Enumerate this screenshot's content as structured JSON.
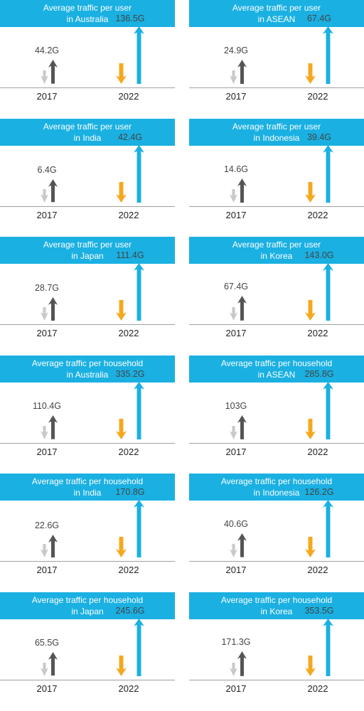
{
  "colors": {
    "banner": "#1ab0e2",
    "arrow_2017_up": "#555555",
    "arrow_2017_down": "#c9c9c9",
    "arrow_2022_up": "#1ab0e2",
    "arrow_2022_down": "#f5a81c"
  },
  "chart_data": [
    {
      "type": "bar",
      "title": "Average traffic per user in Australia",
      "title_lines": [
        "Average traffic per user",
        "in Australia"
      ],
      "categories": [
        "2017",
        "2022"
      ],
      "values": [
        44.2,
        136.5
      ],
      "labels": [
        "44.2G",
        "136.5G"
      ]
    },
    {
      "type": "bar",
      "title": "Average traffic per user in ASEAN",
      "title_lines": [
        "Average traffic per user",
        "in ASEAN"
      ],
      "categories": [
        "2017",
        "2022"
      ],
      "values": [
        24.9,
        67.4
      ],
      "labels": [
        "24.9G",
        "67.4G"
      ]
    },
    {
      "type": "bar",
      "title": "Average traffic per user in India",
      "title_lines": [
        "Average traffic per user",
        "in India"
      ],
      "categories": [
        "2017",
        "2022"
      ],
      "values": [
        6.4,
        42.4
      ],
      "labels": [
        "6.4G",
        "42.4G"
      ]
    },
    {
      "type": "bar",
      "title": "Average traffic per user in Indonesia",
      "title_lines": [
        "Average traffic per user",
        "in Indonesia"
      ],
      "categories": [
        "2017",
        "2022"
      ],
      "values": [
        14.6,
        39.4
      ],
      "labels": [
        "14.6G",
        "39.4G"
      ]
    },
    {
      "type": "bar",
      "title": "Average traffic per user in Japan",
      "title_lines": [
        "Average traffic per user",
        "in Japan"
      ],
      "categories": [
        "2017",
        "2022"
      ],
      "values": [
        28.7,
        111.4
      ],
      "labels": [
        "28.7G",
        "111.4G"
      ]
    },
    {
      "type": "bar",
      "title": "Average traffic per user in Korea",
      "title_lines": [
        "Average traffic per user",
        "in Korea"
      ],
      "categories": [
        "2017",
        "2022"
      ],
      "values": [
        67.4,
        143.0
      ],
      "labels": [
        "67.4G",
        "143.0G"
      ]
    },
    {
      "type": "bar",
      "title": "Average traffic per household in Australia",
      "title_lines": [
        "Average traffic per household",
        "in Australia"
      ],
      "categories": [
        "2017",
        "2022"
      ],
      "values": [
        110.4,
        335.2
      ],
      "labels": [
        "110.4G",
        "335.2G"
      ]
    },
    {
      "type": "bar",
      "title": "Average traffic per household in ASEAN",
      "title_lines": [
        "Average traffic per household",
        "in ASEAN"
      ],
      "categories": [
        "2017",
        "2022"
      ],
      "values": [
        103,
        285.8
      ],
      "labels": [
        "103G",
        "285.8G"
      ]
    },
    {
      "type": "bar",
      "title": "Average traffic per household in India",
      "title_lines": [
        "Average traffic per household",
        "in India"
      ],
      "categories": [
        "2017",
        "2022"
      ],
      "values": [
        22.6,
        170.8
      ],
      "labels": [
        "22.6G",
        "170.8G"
      ]
    },
    {
      "type": "bar",
      "title": "Average traffic per household in Indonesia",
      "title_lines": [
        "Average traffic per household",
        "in Indonesia"
      ],
      "categories": [
        "2017",
        "2022"
      ],
      "values": [
        40.6,
        126.2
      ],
      "labels": [
        "40.6G",
        "126.2G"
      ]
    },
    {
      "type": "bar",
      "title": "Average traffic per household in Japan",
      "title_lines": [
        "Average traffic per household",
        "in Japan"
      ],
      "categories": [
        "2017",
        "2022"
      ],
      "values": [
        65.5,
        245.6
      ],
      "labels": [
        "65.5G",
        "245.6G"
      ]
    },
    {
      "type": "bar",
      "title": "Average traffic per household in Korea",
      "title_lines": [
        "Average traffic per household",
        "in Korea"
      ],
      "categories": [
        "2017",
        "2022"
      ],
      "values": [
        171.3,
        353.5
      ],
      "labels": [
        "171.3G",
        "353.5G"
      ]
    }
  ]
}
